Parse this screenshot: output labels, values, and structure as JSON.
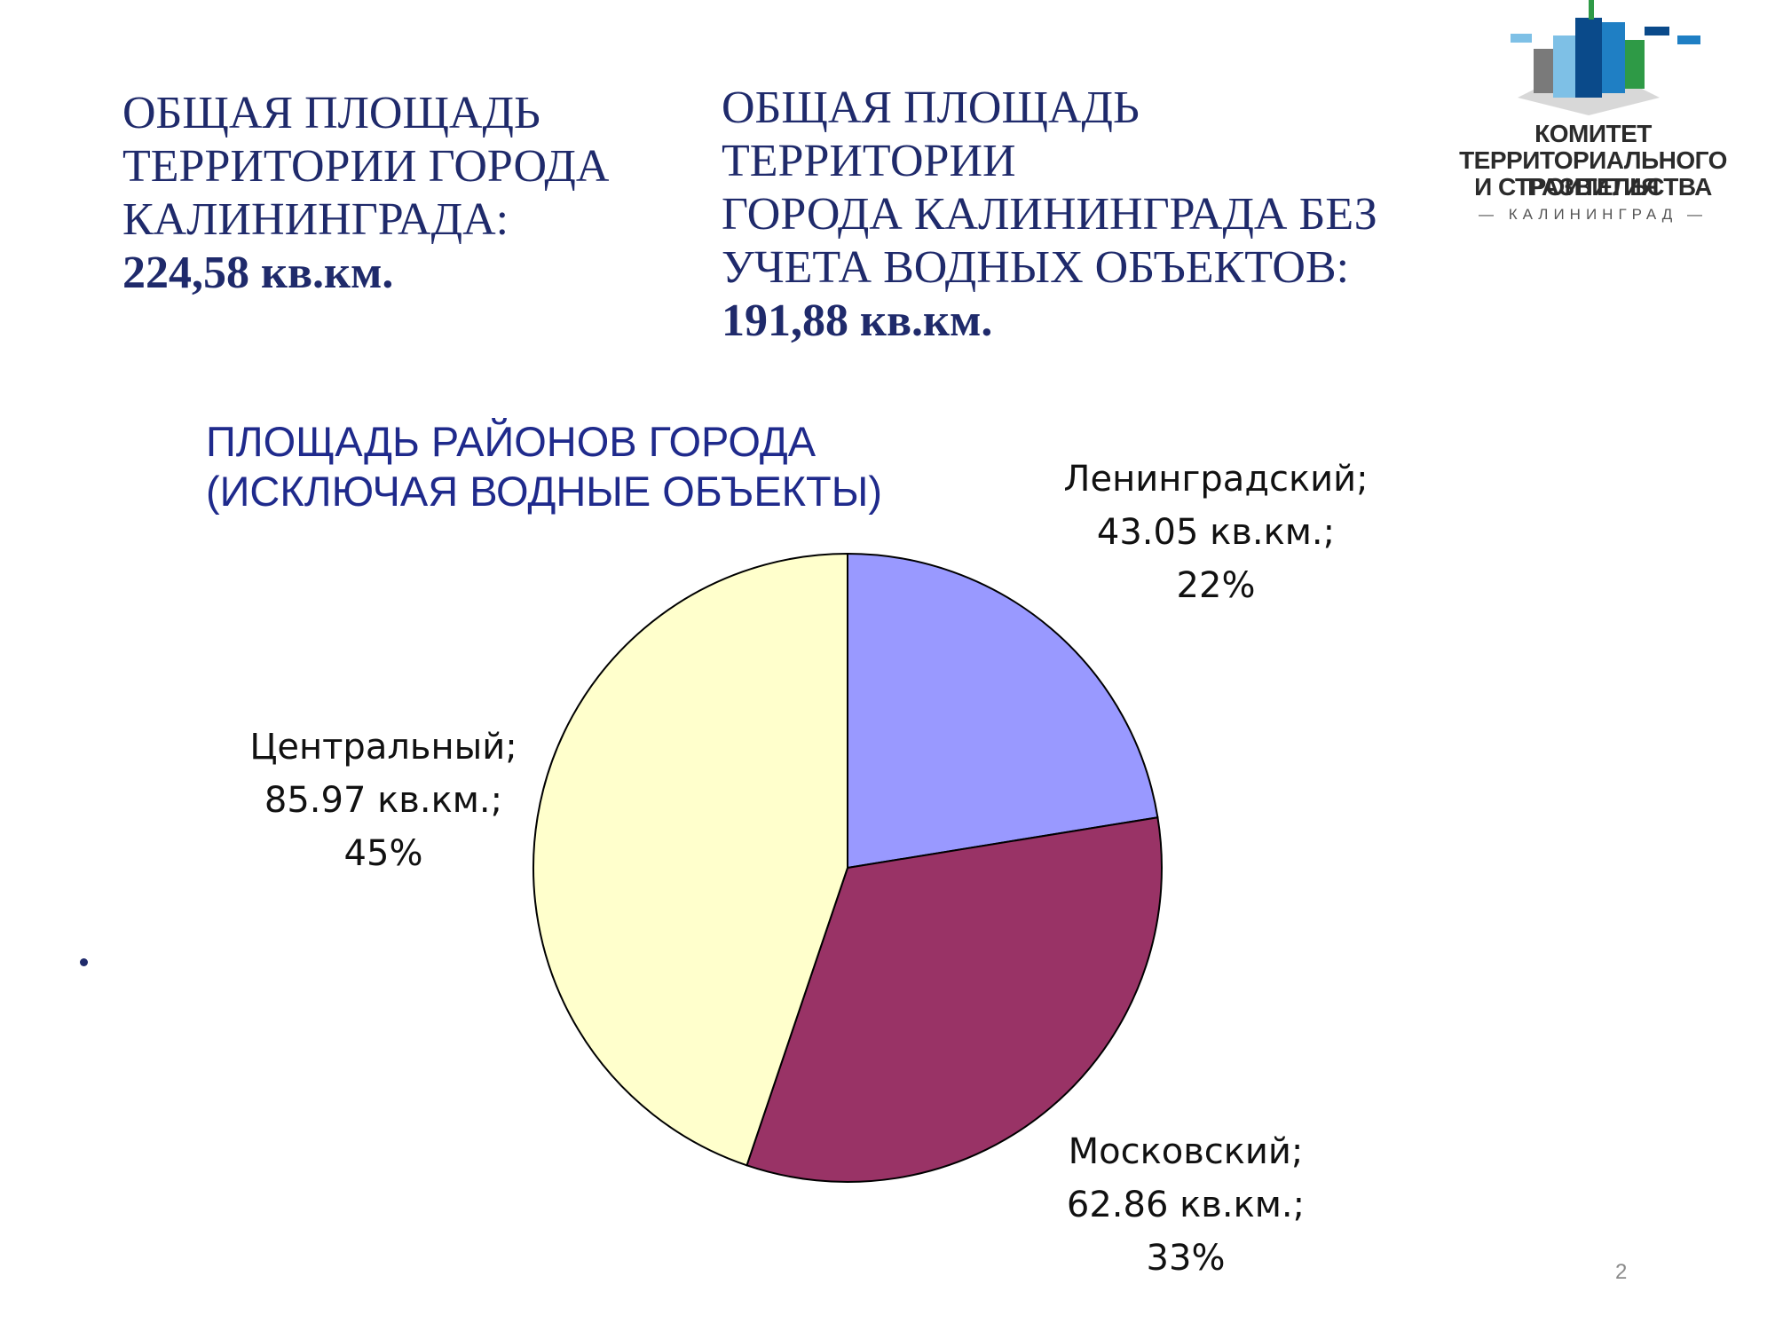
{
  "stats": {
    "total": {
      "lines": [
        "ОБЩАЯ ПЛОЩАДЬ",
        "ТЕРРИТОРИИ ГОРОДА",
        "КАЛИНИНГРАДА:"
      ],
      "value": "224,58 кв.км."
    },
    "land": {
      "lines": [
        "ОБЩАЯ ПЛОЩАДЬ ТЕРРИТОРИИ",
        "ГОРОДА КАЛИНИНГРАДА БЕЗ",
        "УЧЕТА ВОДНЫХ ОБЪЕКТОВ:"
      ],
      "value": "191,88 кв.км."
    }
  },
  "logo": {
    "line1": "КОМИТЕТ",
    "line2": "ТЕРРИТОРИАЛЬНОГО РАЗВИТИЯ",
    "line3": "И СТРОИТЕЛЬСТВА",
    "city": "— КАЛИНИНГРАД —",
    "colors": [
      "#0a4a8a",
      "#1f7fc4",
      "#7ec0e6",
      "#2e9a46",
      "#7a7a7a"
    ]
  },
  "chart_data": {
    "type": "pie",
    "title_lines": [
      "ПЛОЩАДЬ РАЙОНОВ ГОРОДА",
      "(ИСКЛЮЧАЯ ВОДНЫЕ ОБЪЕКТЫ)"
    ],
    "slices": [
      {
        "name": "Ленинградский;",
        "value": 43.05,
        "value_label": "43.05 кв.км.;",
        "percent": "22%",
        "color": "#9999ff"
      },
      {
        "name": "Московский;",
        "value": 62.86,
        "value_label": "62.86 кв.км.;",
        "percent": "33%",
        "color": "#993366"
      },
      {
        "name": "Центральный;",
        "value": 85.97,
        "value_label": "85.97 кв.км.;",
        "percent": "45%",
        "color": "#ffffcc"
      }
    ]
  },
  "page_number": "2"
}
